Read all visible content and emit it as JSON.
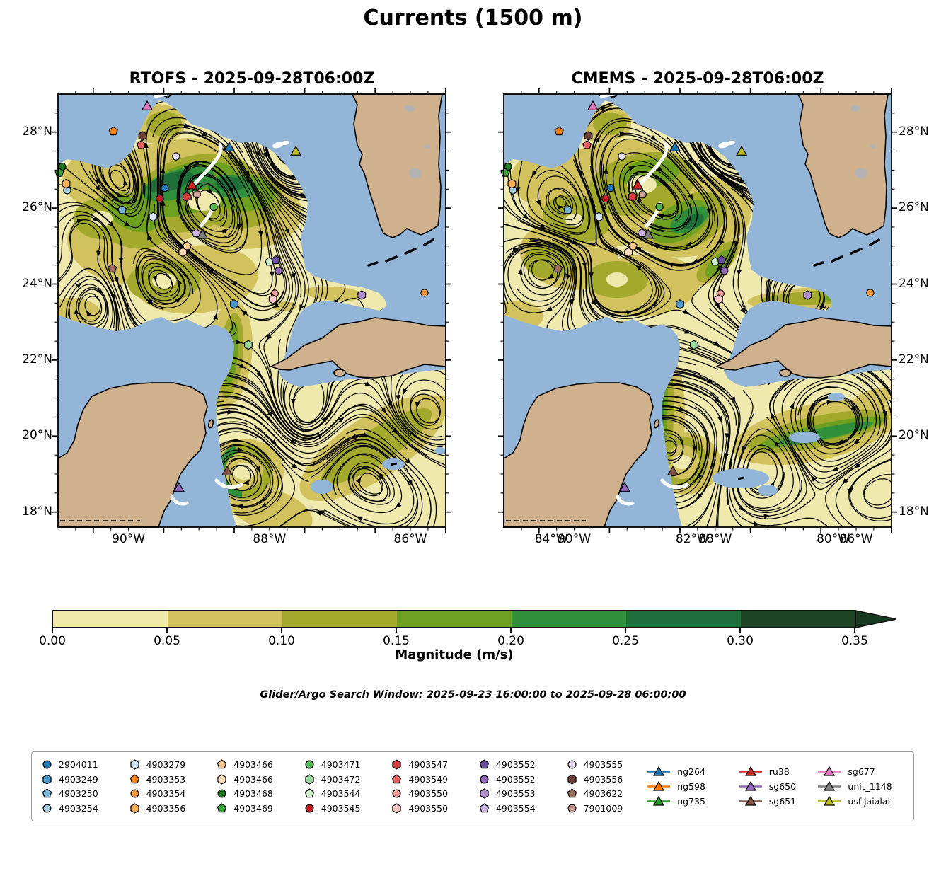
{
  "title": "Currents (1500 m)",
  "panels": [
    {
      "title": "RTOFS - 2025-09-28T06:00Z"
    },
    {
      "title": "CMEMS - 2025-09-28T06:00Z"
    }
  ],
  "annotation": "Glider/Argo Search Window: 2025-09-23 16:00:00 to 2025-09-28 06:00:00",
  "axes": {
    "lon_tick_labels": [
      "90°W",
      "88°W",
      "86°W",
      "84°W",
      "82°W",
      "80°W"
    ],
    "lat_tick_labels": [
      "28°N",
      "26°N",
      "24°N",
      "22°N",
      "20°N",
      "18°N"
    ]
  },
  "colorbar": {
    "label": "Magnitude (m/s)",
    "tick_labels": [
      "0.00",
      "0.05",
      "0.10",
      "0.15",
      "0.20",
      "0.25",
      "0.30",
      "0.35"
    ],
    "segment_colors": [
      "#f0e9a9",
      "#d2c25e",
      "#a2a92d",
      "#6da021",
      "#2f8f3a",
      "#1d6e38",
      "#1d4424"
    ],
    "over_color": "#16391f"
  },
  "map_colors": {
    "ocean": "#92b5d8",
    "land": "#cfb18d",
    "lake": "#b3b3b3",
    "field_base": "#efe9ae",
    "glider_track": "#ffffff",
    "streamline": "#000000"
  },
  "chart_data": {
    "type": "streamplot-map",
    "suptitle": "Currents (1500 m)",
    "panels": [
      {
        "model": "RTOFS",
        "valid_time": "2025-09-28T06:00Z"
      },
      {
        "model": "CMEMS",
        "valid_time": "2025-09-28T06:00Z"
      }
    ],
    "extent": {
      "lon": [
        -91.0,
        -80.0
      ],
      "lat": [
        17.6,
        29.0
      ]
    },
    "magnitude_scale": {
      "label": "Magnitude (m/s)",
      "levels": [
        0.0,
        0.05,
        0.1,
        0.15,
        0.2,
        0.25,
        0.3,
        0.35
      ],
      "units": "m/s"
    },
    "argo_floats": [
      {
        "id": "2904011",
        "shape": "circle",
        "color": "#2077b4",
        "lon": -87.97,
        "lat": 26.53
      },
      {
        "id": "4903249",
        "shape": "hexagon",
        "color": "#4a98c9",
        "lon": -86.0,
        "lat": 23.47
      },
      {
        "id": "4903250",
        "shape": "pentagon",
        "color": "#7ab6d9",
        "lon": -89.18,
        "lat": 25.95
      },
      {
        "id": "4903254",
        "shape": "circle",
        "color": "#a6cee3",
        "lon": -90.74,
        "lat": 26.47
      },
      {
        "id": "4903279",
        "shape": "hexagon",
        "color": "#d5e4f3",
        "lon": -88.3,
        "lat": 25.77
      },
      {
        "id": "4903353",
        "shape": "pentagon",
        "color": "#f67f12",
        "lon": -89.43,
        "lat": 28.02
      },
      {
        "id": "4903354",
        "shape": "circle",
        "color": "#fd9a3d",
        "lon": -80.6,
        "lat": 23.77
      },
      {
        "id": "4903356",
        "shape": "hexagon",
        "color": "#fdb058",
        "lon": -90.77,
        "lat": 26.64
      },
      {
        "id": "4903466",
        "shape": "pentagon",
        "color": "#fdc88f",
        "lon": -87.34,
        "lat": 25.0
      },
      {
        "id": "4903466",
        "shape": "hexagon",
        "color": "#feddbc",
        "lon": -87.46,
        "lat": 24.84
      },
      {
        "id": "4903468",
        "shape": "circle",
        "color": "#1e7a1e",
        "lon": -90.88,
        "lat": 27.09
      },
      {
        "id": "4903469",
        "shape": "pentagon",
        "color": "#3aa33a",
        "lon": -90.96,
        "lat": 26.93
      },
      {
        "id": "4903471",
        "shape": "circle",
        "color": "#55b955",
        "lon": -86.58,
        "lat": 26.03
      },
      {
        "id": "4903472",
        "shape": "hexagon",
        "color": "#9fd89f",
        "lon": -85.6,
        "lat": 22.4
      },
      {
        "id": "4903544",
        "shape": "pentagon",
        "color": "#cdedcb",
        "lon": -85.0,
        "lat": 24.59
      },
      {
        "id": "4903545",
        "shape": "circle",
        "color": "#c51e20",
        "lon": -88.11,
        "lat": 26.25
      },
      {
        "id": "4903547",
        "shape": "hexagon",
        "color": "#d43b3d",
        "lon": -87.35,
        "lat": 26.3
      },
      {
        "id": "4903549",
        "shape": "pentagon",
        "color": "#e66161",
        "lon": -88.64,
        "lat": 27.66
      },
      {
        "id": "4903550",
        "shape": "circle",
        "color": "#f29b9b",
        "lon": -84.85,
        "lat": 23.75
      },
      {
        "id": "4903550",
        "shape": "hexagon",
        "color": "#f9c5c5",
        "lon": -84.9,
        "lat": 23.6
      },
      {
        "id": "4903552",
        "shape": "pentagon",
        "color": "#6a4fa0",
        "lon": -84.82,
        "lat": 24.63
      },
      {
        "id": "4903552",
        "shape": "circle",
        "color": "#9368bb",
        "lon": -84.74,
        "lat": 24.35
      },
      {
        "id": "4903553",
        "shape": "hexagon",
        "color": "#b28fd0",
        "lon": -82.38,
        "lat": 23.71
      },
      {
        "id": "4903554",
        "shape": "pentagon",
        "color": "#cdb4e2",
        "lon": -87.08,
        "lat": 25.34
      },
      {
        "id": "4903555",
        "shape": "circle",
        "color": "#e9def4",
        "lon": -87.65,
        "lat": 27.36
      },
      {
        "id": "4903556",
        "shape": "hexagon",
        "color": "#6f4238",
        "lon": -88.6,
        "lat": 27.9
      },
      {
        "id": "4903622",
        "shape": "pentagon",
        "color": "#9e6e5d",
        "lon": -89.46,
        "lat": 24.41
      },
      {
        "id": "7901009",
        "shape": "circle",
        "color": "#c99f97",
        "lon": -87.06,
        "lat": 26.36
      }
    ],
    "gliders": [
      {
        "id": "ng264",
        "color": "#1f77b4",
        "lon": -86.14,
        "lat": 27.58,
        "on_map": true
      },
      {
        "id": "ng598",
        "color": "#ff7f0e",
        "lon": null,
        "lat": null,
        "on_map": false
      },
      {
        "id": "ng735",
        "color": "#2ca02c",
        "lon": null,
        "lat": null,
        "on_map": false
      },
      {
        "id": "ru38",
        "color": "#d62728",
        "lon": -87.2,
        "lat": 26.58,
        "on_map": true
      },
      {
        "id": "sg650",
        "color": "#9467bd",
        "lon": -87.57,
        "lat": 18.62,
        "on_map": true
      },
      {
        "id": "sg651",
        "color": "#8c564b",
        "lon": -86.2,
        "lat": 19.05,
        "on_map": true
      },
      {
        "id": "sg677",
        "color": "#e377c2",
        "lon": -88.47,
        "lat": 28.66,
        "on_map": true
      },
      {
        "id": "unit_1148",
        "color": "#7f7f7f",
        "lon": -86.9,
        "lat": 25.28,
        "on_map": true
      },
      {
        "id": "usf-jaialai",
        "color": "#bcbd22",
        "lon": -84.25,
        "lat": 27.47,
        "on_map": true
      }
    ]
  }
}
